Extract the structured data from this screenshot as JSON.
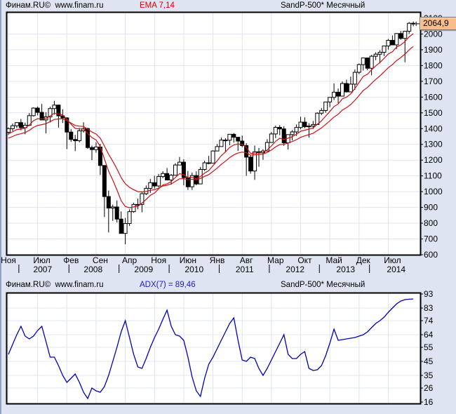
{
  "header1": {
    "source": "Финам.RU©  www.finam.ru",
    "indicator": "EMA 7,14",
    "instrument": "SandP-500* Месячный"
  },
  "header2": {
    "source": "Финам.RU©  www.finam.ru",
    "indicator": "ADX(7) = 89,46",
    "instrument": "SandP-500* Месячный"
  },
  "colors": {
    "page_bg": "#dee4f1",
    "plot_bg": "#ffffff",
    "grid": "#dfe4ef",
    "border": "#000000",
    "ema_label": "#dd0000",
    "ema_line": "#cc1111",
    "adx_label": "#1a1acd",
    "adx_line": "#0000b8",
    "candle_up": "#ffffff",
    "candle_down": "#000000",
    "badge_bg": "#f9bd8a",
    "text": "#000000"
  },
  "chart_data": [
    {
      "type": "candlestick",
      "title": "SandP-500* Месячный",
      "overlay": "EMA 7,14",
      "timeframe": "monthly",
      "last_price": 2064.9,
      "last_price_label": "2064,9",
      "ylim": [
        600,
        2140
      ],
      "y_ticks": [
        600,
        700,
        800,
        900,
        1000,
        1100,
        1200,
        1300,
        1400,
        1500,
        1600,
        1700,
        1800,
        1900,
        2000,
        2100
      ],
      "x_tick_labels": [
        {
          "index": 0,
          "label": "Ноя"
        },
        {
          "index": 8,
          "label": "Июл"
        },
        {
          "index": 15,
          "label": "Фев"
        },
        {
          "index": 22,
          "label": "Сен"
        },
        {
          "index": 29,
          "label": "Апр"
        },
        {
          "index": 36,
          "label": "Ноя"
        },
        {
          "index": 43,
          "label": "Июн"
        },
        {
          "index": 50,
          "label": "Янв"
        },
        {
          "index": 57,
          "label": "Авг"
        },
        {
          "index": 64,
          "label": "Мар"
        },
        {
          "index": 71,
          "label": "Окт"
        },
        {
          "index": 78,
          "label": "Май"
        },
        {
          "index": 85,
          "label": "Дек"
        },
        {
          "index": 92,
          "label": "Июл"
        }
      ],
      "year_labels": [
        {
          "index": 8.2,
          "label": "2007"
        },
        {
          "index": 20.3,
          "label": "2008"
        },
        {
          "index": 32.4,
          "label": "2009"
        },
        {
          "index": 44.5,
          "label": "2010"
        },
        {
          "index": 56.6,
          "label": "2011"
        },
        {
          "index": 68.7,
          "label": "2012"
        },
        {
          "index": 80.8,
          "label": "2013"
        },
        {
          "index": 92.9,
          "label": "2014"
        }
      ],
      "year_tick_indices": [
        2,
        14,
        26,
        38,
        50,
        62,
        74,
        86
      ],
      "grid_v_indices": [
        0,
        7,
        14,
        21,
        28,
        35,
        42,
        49,
        56,
        63,
        70,
        77,
        84,
        91
      ],
      "ema": {
        "periods": [
          7,
          14
        ],
        "seed7": 1355,
        "seed14": 1330
      },
      "ohlc": [
        [
          1377,
          1407,
          1360,
          1400
        ],
        [
          1400,
          1432,
          1385,
          1418
        ],
        [
          1418,
          1441,
          1404,
          1438
        ],
        [
          1438,
          1461,
          1389,
          1406
        ],
        [
          1406,
          1438,
          1364,
          1421
        ],
        [
          1421,
          1498,
          1416,
          1482
        ],
        [
          1482,
          1535,
          1476,
          1530
        ],
        [
          1530,
          1540,
          1484,
          1503
        ],
        [
          1503,
          1556,
          1454,
          1455
        ],
        [
          1455,
          1504,
          1370,
          1474
        ],
        [
          1474,
          1539,
          1439,
          1527
        ],
        [
          1527,
          1576,
          1489,
          1549
        ],
        [
          1549,
          1552,
          1406,
          1481
        ],
        [
          1481,
          1523,
          1436,
          1468
        ],
        [
          1468,
          1472,
          1270,
          1378
        ],
        [
          1378,
          1396,
          1316,
          1331
        ],
        [
          1331,
          1360,
          1257,
          1323
        ],
        [
          1323,
          1404,
          1313,
          1386
        ],
        [
          1386,
          1440,
          1374,
          1400
        ],
        [
          1400,
          1406,
          1272,
          1280
        ],
        [
          1280,
          1292,
          1200,
          1267
        ],
        [
          1267,
          1313,
          1247,
          1283
        ],
        [
          1283,
          1303,
          1106,
          1166
        ],
        [
          1166,
          1167,
          839,
          969
        ],
        [
          969,
          1007,
          741,
          896
        ],
        [
          896,
          918,
          815,
          903
        ],
        [
          903,
          944,
          804,
          826
        ],
        [
          826,
          875,
          735,
          735
        ],
        [
          735,
          833,
          666,
          798
        ],
        [
          798,
          888,
          783,
          873
        ],
        [
          873,
          930,
          866,
          919
        ],
        [
          919,
          956,
          888,
          919
        ],
        [
          919,
          996,
          869,
          987
        ],
        [
          987,
          1039,
          978,
          1021
        ],
        [
          1021,
          1080,
          992,
          1057
        ],
        [
          1057,
          1101,
          1020,
          1036
        ],
        [
          1036,
          1113,
          1029,
          1096
        ],
        [
          1096,
          1130,
          1085,
          1115
        ],
        [
          1115,
          1150,
          1071,
          1074
        ],
        [
          1074,
          1112,
          1045,
          1104
        ],
        [
          1104,
          1181,
          1104,
          1169
        ],
        [
          1169,
          1220,
          1168,
          1187
        ],
        [
          1187,
          1205,
          1040,
          1089
        ],
        [
          1089,
          1131,
          1011,
          1031
        ],
        [
          1031,
          1121,
          1011,
          1102
        ],
        [
          1102,
          1129,
          1040,
          1049
        ],
        [
          1049,
          1157,
          1049,
          1141
        ],
        [
          1141,
          1196,
          1131,
          1183
        ],
        [
          1183,
          1227,
          1173,
          1181
        ],
        [
          1181,
          1262,
          1181,
          1258
        ],
        [
          1258,
          1302,
          1257,
          1286
        ],
        [
          1286,
          1344,
          1286,
          1327
        ],
        [
          1327,
          1339,
          1249,
          1326
        ],
        [
          1326,
          1364,
          1294,
          1364
        ],
        [
          1364,
          1371,
          1311,
          1345
        ],
        [
          1345,
          1346,
          1258,
          1321
        ],
        [
          1321,
          1356,
          1282,
          1292
        ],
        [
          1292,
          1307,
          1101,
          1219
        ],
        [
          1219,
          1230,
          1114,
          1131
        ],
        [
          1131,
          1292,
          1075,
          1253
        ],
        [
          1253,
          1277,
          1158,
          1247
        ],
        [
          1247,
          1269,
          1202,
          1258
        ],
        [
          1258,
          1333,
          1258,
          1312
        ],
        [
          1312,
          1378,
          1312,
          1366
        ],
        [
          1366,
          1419,
          1340,
          1408
        ],
        [
          1408,
          1422,
          1358,
          1398
        ],
        [
          1398,
          1415,
          1291,
          1310
        ],
        [
          1310,
          1363,
          1267,
          1362
        ],
        [
          1362,
          1391,
          1325,
          1379
        ],
        [
          1379,
          1426,
          1354,
          1407
        ],
        [
          1407,
          1475,
          1396,
          1441
        ],
        [
          1441,
          1471,
          1403,
          1412
        ],
        [
          1412,
          1434,
          1343,
          1416
        ],
        [
          1416,
          1448,
          1398,
          1426
        ],
        [
          1426,
          1503,
          1426,
          1498
        ],
        [
          1498,
          1531,
          1485,
          1515
        ],
        [
          1515,
          1570,
          1501,
          1569
        ],
        [
          1569,
          1598,
          1536,
          1598
        ],
        [
          1598,
          1687,
          1581,
          1631
        ],
        [
          1631,
          1654,
          1560,
          1606
        ],
        [
          1606,
          1699,
          1604,
          1686
        ],
        [
          1686,
          1710,
          1628,
          1633
        ],
        [
          1633,
          1730,
          1633,
          1682
        ],
        [
          1682,
          1775,
          1646,
          1757
        ],
        [
          1757,
          1813,
          1746,
          1806
        ],
        [
          1806,
          1849,
          1768,
          1848
        ],
        [
          1848,
          1851,
          1770,
          1783
        ],
        [
          1783,
          1868,
          1738,
          1859
        ],
        [
          1859,
          1884,
          1834,
          1872
        ],
        [
          1872,
          1897,
          1814,
          1884
        ],
        [
          1884,
          1924,
          1860,
          1924
        ],
        [
          1924,
          1968,
          1901,
          1960
        ],
        [
          1960,
          1991,
          1930,
          1931
        ],
        [
          1931,
          2005,
          1905,
          2003
        ],
        [
          2003,
          2019,
          1964,
          1972
        ],
        [
          1972,
          2018,
          1821,
          2018
        ],
        [
          2018,
          2076,
          2001,
          2068
        ],
        [
          2068,
          2079,
          2049,
          2064.9
        ]
      ]
    },
    {
      "type": "line",
      "title": "ADX(7) = 89,46",
      "last_value": 89.46,
      "ylim": [
        16,
        93
      ],
      "y_ticks": [
        16,
        26,
        35,
        45,
        55,
        64,
        74,
        83,
        93
      ],
      "grid_h_values": [
        26,
        35,
        45,
        55,
        64,
        74,
        83
      ],
      "values": [
        50,
        57,
        64,
        70,
        63,
        61,
        63,
        67,
        70,
        59,
        48,
        48,
        42,
        35,
        30,
        33,
        36,
        30,
        23,
        18.5,
        26,
        24,
        23,
        27,
        35,
        45,
        55,
        66,
        74,
        62,
        50,
        41,
        40,
        47,
        55,
        62,
        68,
        75,
        81.5,
        70,
        64,
        63,
        60,
        48,
        34,
        24,
        20,
        33,
        43,
        48,
        54,
        60,
        66,
        72,
        76,
        60,
        46,
        45,
        48,
        47,
        40,
        35,
        40,
        46,
        52,
        58,
        64,
        50,
        47,
        47,
        50,
        52,
        40,
        38.5,
        39,
        42,
        49,
        58,
        68,
        60,
        60.5,
        61,
        61.5,
        62,
        63,
        64,
        66,
        69,
        72,
        74,
        76.5,
        80,
        83,
        86,
        88,
        89,
        89.3,
        89.46
      ]
    }
  ]
}
